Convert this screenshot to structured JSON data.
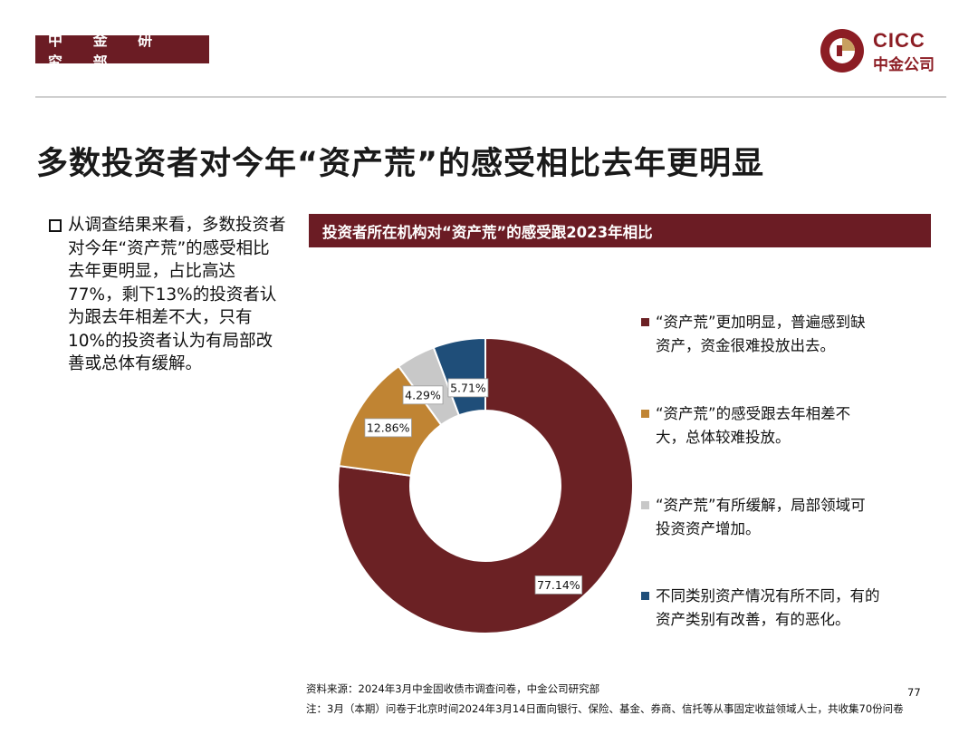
{
  "header": {
    "department": "中 金 研 究 部",
    "logo_en": "CICC",
    "logo_cn": "中金公司"
  },
  "title": "多数投资者对今年“资产荒”的感受相比去年更明显",
  "bullet_text": "从调查结果来看，多数投资者对今年“资产荒”的感受相比去年更明显，占比高达77%，剩下13%的投资者认为跟去年相差不大，只有10%的投资者认为有局部改善或总体有缓解。",
  "chart_header": "投资者所在机构对“资产荒”的感受跟2023年相比",
  "chart_data": {
    "type": "pie",
    "donut": true,
    "title": "投资者所在机构对“资产荒”的感受跟2023年相比",
    "categories": [
      "“资产荒”更加明显，普遍感到缺资产，资金很难投放出去。",
      "“资产荒”的感受跟去年相差不大，总体较难投放。",
      "“资产荒”有所缓解，局部领域可投资资产增加。",
      "不同类别资产情况有所不同，有的资产类别有改善，有的恶化。"
    ],
    "values": [
      77.14,
      12.86,
      4.29,
      5.71
    ],
    "labels": [
      "77.14%",
      "12.86%",
      "4.29%",
      "5.71%"
    ],
    "colors": [
      "#6b2124",
      "#c08433",
      "#c8c8c8",
      "#1f4e79"
    ],
    "legend_position": "right",
    "start_angle_deg": 0,
    "direction": "clockwise"
  },
  "legend": [
    {
      "line1": "“资产荒”更加明显，普遍感到缺",
      "line2": "资产，资金很难投放出去。"
    },
    {
      "line1": "“资产荒”的感受跟去年相差不",
      "line2": "大，总体较难投放。"
    },
    {
      "line1": "“资产荒”有所缓解，局部领域可",
      "line2": "投资资产增加。"
    },
    {
      "line1": "不同类别资产情况有所不同，有的",
      "line2": "资产类别有改善，有的恶化。"
    }
  ],
  "footer": {
    "source": "资料来源：2024年3月中金固收债市调查问卷，中金公司研究部",
    "note": "注：3月（本期）问卷于北京时间2024年3月14日面向银行、保险、基金、券商、信托等从事固定收益领域人士，共收集70份问卷",
    "page_number": "77"
  }
}
